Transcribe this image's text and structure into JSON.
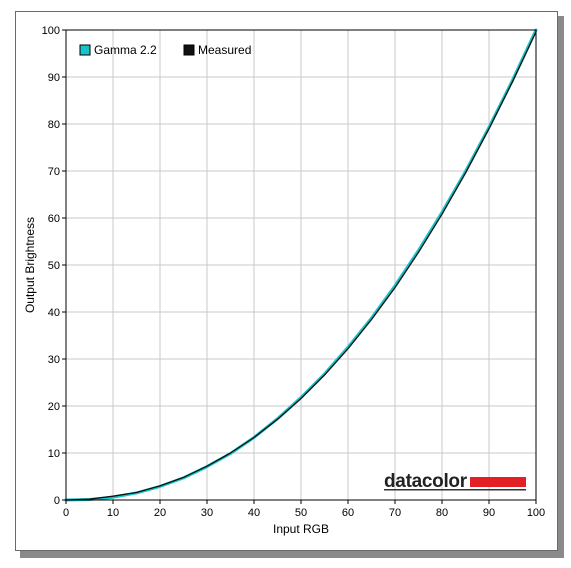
{
  "chart_data": {
    "type": "line",
    "title": "",
    "xlabel": "Input RGB",
    "ylabel": "Output Brightness",
    "xlim": [
      0,
      100
    ],
    "ylim": [
      0,
      100
    ],
    "xticks": [
      "0",
      "10",
      "20",
      "30",
      "40",
      "50",
      "60",
      "70",
      "80",
      "90",
      "100"
    ],
    "yticks": [
      "0",
      "10",
      "20",
      "30",
      "40",
      "50",
      "60",
      "70",
      "80",
      "90",
      "100"
    ],
    "grid": true,
    "legend_position": "top-left",
    "series": [
      {
        "name": "Gamma 2.2",
        "color": "#19c3c9",
        "x": [
          0,
          5,
          10,
          15,
          20,
          25,
          30,
          35,
          40,
          45,
          50,
          55,
          60,
          65,
          70,
          75,
          80,
          85,
          90,
          95,
          100
        ],
        "values": [
          0,
          0.1,
          0.6,
          1.5,
          2.9,
          4.7,
          7.1,
          9.9,
          13.3,
          17.3,
          21.8,
          26.8,
          32.5,
          38.7,
          45.6,
          53.1,
          61.2,
          69.9,
          79.3,
          89.3,
          100
        ]
      },
      {
        "name": "Measured",
        "color": "#111111",
        "x": [
          0,
          5,
          10,
          15,
          20,
          25,
          30,
          35,
          40,
          45,
          50,
          55,
          60,
          65,
          70,
          75,
          80,
          85,
          90,
          95,
          100
        ],
        "values": [
          0,
          0.2,
          0.8,
          1.6,
          3.0,
          4.8,
          7.2,
          10.0,
          13.3,
          17.2,
          21.6,
          26.6,
          32.2,
          38.4,
          45.2,
          52.7,
          60.8,
          69.6,
          79.0,
          89.0,
          99.6
        ]
      }
    ]
  },
  "logo": {
    "text": "datacolor",
    "bar_color": "#e32025"
  }
}
